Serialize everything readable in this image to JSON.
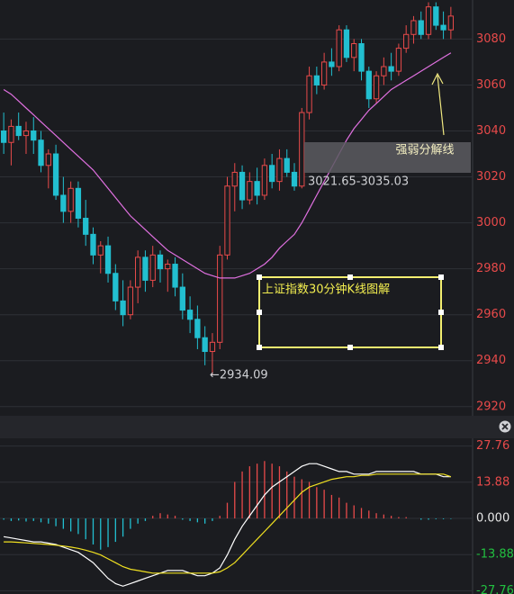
{
  "chart_data": [
    {
      "type": "candlestick",
      "up_color": "#e84a4a",
      "down_color": "#22bfd0",
      "open": [
        3040,
        3035,
        3042,
        3038,
        3040,
        3036,
        3025,
        3030,
        3012,
        3005,
        3015,
        3002,
        2995,
        2986,
        2990,
        2978,
        2966,
        2960,
        2972,
        2985,
        2975,
        2986,
        2980,
        2982,
        2972,
        2962,
        2958,
        2950,
        2944,
        2948,
        2986,
        3016,
        3022,
        3010,
        3018,
        3012,
        3025,
        3018,
        3028,
        3022,
        3016,
        3048,
        3064,
        3060,
        3070,
        3068,
        3084,
        3072,
        3078,
        3066,
        3054,
        3064,
        3068,
        3066,
        3076,
        3082,
        3088,
        3082,
        3094,
        3086,
        3084
      ],
      "high": [
        3048,
        3045,
        3048,
        3044,
        3046,
        3040,
        3032,
        3034,
        3020,
        3018,
        3018,
        3010,
        2998,
        2992,
        2994,
        2982,
        2975,
        2975,
        2988,
        2988,
        2990,
        2988,
        2984,
        2985,
        2978,
        2968,
        2964,
        2955,
        2952,
        2990,
        3020,
        3026,
        3025,
        3022,
        3024,
        3028,
        3030,
        3032,
        3032,
        3026,
        3050,
        3068,
        3068,
        3074,
        3076,
        3086,
        3086,
        3080,
        3080,
        3068,
        3066,
        3072,
        3074,
        3078,
        3086,
        3090,
        3092,
        3096,
        3096,
        3092,
        3094
      ],
      "low": [
        3030,
        3025,
        3036,
        3030,
        3030,
        3022,
        3015,
        3010,
        3000,
        3000,
        2998,
        2990,
        2982,
        2978,
        2974,
        2962,
        2955,
        2958,
        2965,
        2970,
        2972,
        2974,
        2970,
        2968,
        2958,
        2952,
        2945,
        2938,
        2934.09,
        2945,
        2984,
        3005,
        3006,
        3008,
        3008,
        3010,
        3015,
        3014,
        3020,
        3014,
        3015,
        3045,
        3056,
        3058,
        3064,
        3066,
        3070,
        3066,
        3062,
        3050,
        3052,
        3060,
        3062,
        3064,
        3074,
        3078,
        3080,
        3080,
        3084,
        3080,
        3080
      ],
      "close": [
        3035,
        3042,
        3038,
        3040,
        3036,
        3025,
        3030,
        3012,
        3005,
        3015,
        3002,
        2995,
        2986,
        2990,
        2978,
        2966,
        2960,
        2972,
        2985,
        2975,
        2986,
        2980,
        2982,
        2972,
        2962,
        2958,
        2950,
        2944,
        2948,
        2986,
        3016,
        3022,
        3010,
        3018,
        3012,
        3025,
        3018,
        3028,
        3022,
        3016,
        3048,
        3064,
        3060,
        3070,
        3068,
        3084,
        3072,
        3078,
        3066,
        3054,
        3064,
        3068,
        3066,
        3076,
        3082,
        3088,
        3082,
        3094,
        3086,
        3084,
        3090
      ],
      "series": [
        {
          "color": "#e070e0",
          "values": [
            3058,
            3056,
            3053,
            3050,
            3047,
            3044,
            3041,
            3038,
            3035,
            3032,
            3029,
            3026,
            3023,
            3019,
            3015,
            3011,
            3007,
            3003,
            3000,
            2997,
            2994,
            2991,
            2988,
            2986,
            2984,
            2982,
            2980,
            2978,
            2977,
            2976,
            2976,
            2976,
            2977,
            2978,
            2980,
            2982,
            2985,
            2989,
            2992,
            2995,
            3000,
            3006,
            3012,
            3018,
            3024,
            3030,
            3036,
            3041,
            3045,
            3049,
            3052,
            3055,
            3058,
            3060,
            3062,
            3064,
            3066,
            3068,
            3070,
            3072,
            3074
          ]
        }
      ],
      "ylim": [
        2916,
        3097
      ],
      "yticks": [
        3080,
        3060,
        3040,
        3020,
        3000,
        2980,
        2960,
        2940,
        2920
      ],
      "grid": true,
      "annotations": [
        "强弱分解线",
        "3021.65-3035.03",
        "←2934.09",
        "上证指数30分钟K线图解"
      ]
    },
    {
      "type": "macd",
      "up_color": "#e84a4a",
      "down_color": "#22bfd0",
      "histogram": [
        -0.5,
        -1,
        -0.8,
        -1.2,
        -1,
        -1.5,
        -2,
        -3,
        -4,
        -5,
        -6,
        -8,
        -10,
        -12,
        -11,
        -9,
        -7,
        -4,
        -2,
        -1,
        1,
        2,
        1.5,
        1,
        -0.5,
        -1,
        -1.5,
        -2,
        -1,
        1,
        6,
        14,
        18,
        20,
        21,
        22,
        21,
        20,
        18,
        16,
        15,
        14,
        12,
        11,
        9,
        8,
        6,
        5,
        4,
        3,
        2,
        1.5,
        1,
        0.5,
        0.5,
        0,
        -0.5,
        -0.5,
        -0.3,
        -0.3,
        -0.2
      ],
      "series": [
        {
          "color": "#ffffff",
          "values": [
            -7,
            -7.5,
            -8,
            -8.5,
            -9,
            -9,
            -9.5,
            -10,
            -11,
            -12,
            -13,
            -15,
            -17,
            -20,
            -23,
            -25,
            -26,
            -25,
            -24,
            -23,
            -22,
            -21,
            -20,
            -20,
            -20,
            -21,
            -22,
            -22,
            -21,
            -19,
            -14,
            -8,
            -3,
            1,
            5,
            9,
            12,
            14,
            16,
            18,
            20,
            21,
            21,
            20,
            19,
            18,
            18,
            17,
            17,
            17,
            18,
            18,
            18,
            18,
            18,
            18,
            17,
            17,
            17,
            16,
            16
          ]
        },
        {
          "color": "#f0e020",
          "values": [
            -9,
            -9,
            -9.2,
            -9.4,
            -9.6,
            -9.8,
            -10,
            -10.3,
            -10.6,
            -11,
            -11.5,
            -12.2,
            -13,
            -14,
            -15.5,
            -17,
            -18.5,
            -19.5,
            -20,
            -20.5,
            -21,
            -21,
            -21,
            -21,
            -21,
            -21,
            -21,
            -21,
            -21,
            -20.5,
            -19,
            -17,
            -14,
            -11,
            -8,
            -5,
            -2,
            1,
            4,
            7,
            10,
            12,
            13,
            14,
            15,
            15.5,
            16,
            16,
            16.5,
            16.5,
            17,
            17,
            17,
            17,
            17,
            17,
            17,
            17,
            17,
            17,
            16
          ]
        }
      ],
      "ylim": [
        -29,
        29
      ],
      "yticks": [
        27.76,
        13.88,
        {
          "value": 0,
          "label": "0.000"
        },
        -13.88,
        -27.76
      ],
      "grid": true
    }
  ]
}
